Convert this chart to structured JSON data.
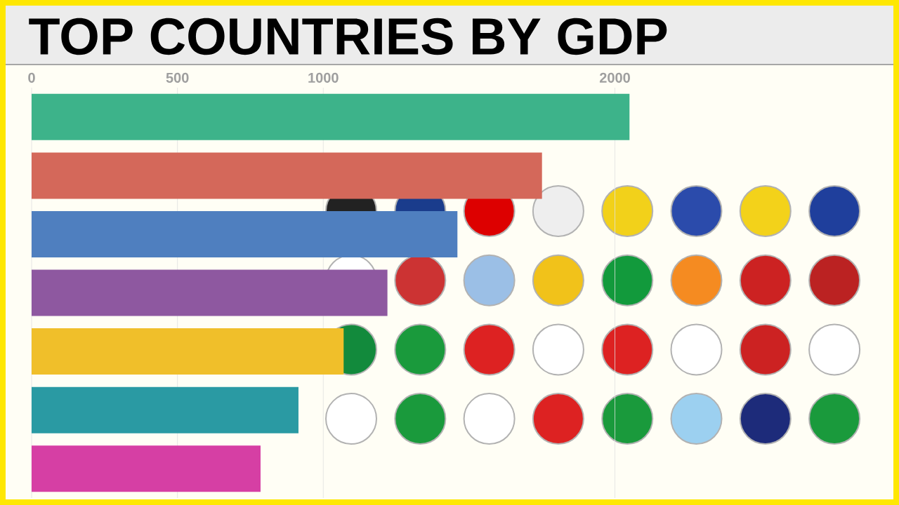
{
  "chart_data": {
    "type": "bar",
    "orientation": "horizontal",
    "title": "TOP COUNTRIES BY GDP",
    "categories": [
      null,
      null,
      null,
      null,
      null,
      null,
      null
    ],
    "values": [
      2050,
      1750,
      1460,
      1220,
      1070,
      915,
      785
    ],
    "colors": [
      "#3db38a",
      "#d4685a",
      "#4f7fbf",
      "#8e58a0",
      "#f0bf2a",
      "#2a9aa3",
      "#d63fa4"
    ],
    "xlim": [
      0,
      2950
    ],
    "xticks": [
      0,
      500,
      1000,
      2000
    ],
    "grid": "x",
    "tick_labels": "x"
  }
}
